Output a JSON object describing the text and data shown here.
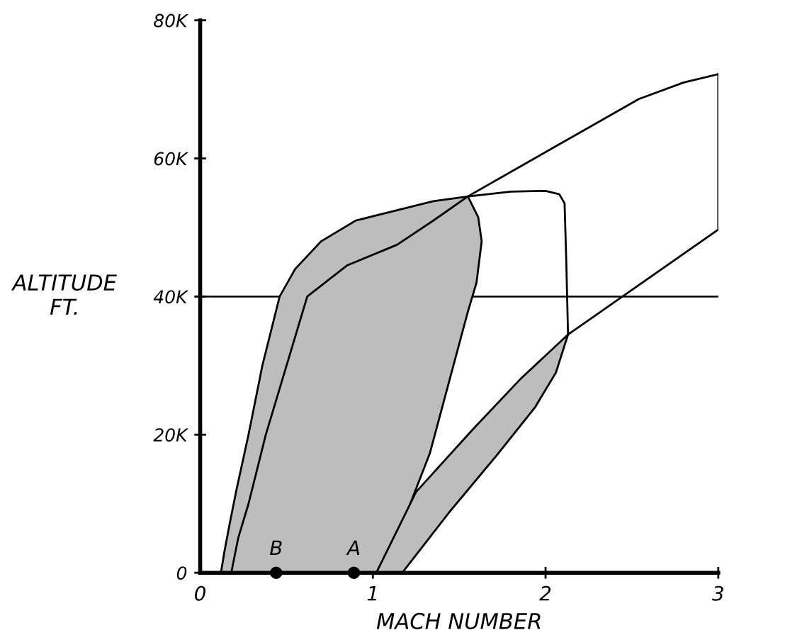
{
  "chart_data": {
    "type": "line",
    "xlabel": "MACH NUMBER",
    "ylabel": "ALTITUDE\nFT.",
    "xlim": [
      0,
      3
    ],
    "xticks": [
      0,
      1,
      2,
      3
    ],
    "ylim": [
      0,
      80000
    ],
    "yticks": [
      {
        "value": 0,
        "label": "0"
      },
      {
        "value": 20000,
        "label": "20K"
      },
      {
        "value": 40000,
        "label": "40K"
      },
      {
        "value": 60000,
        "label": "60K"
      },
      {
        "value": 80000,
        "label": "80K"
      }
    ],
    "grid": false,
    "legend": false,
    "ref_lines": [
      {
        "axis": "y",
        "value": 40000,
        "color": "#000000",
        "line_style": "solid"
      }
    ],
    "series": [
      {
        "type": "area",
        "color": "#bdbdbd",
        "x": [
          0.12,
          0.14,
          0.17,
          0.21,
          0.28,
          0.36,
          0.46,
          0.55,
          0.7,
          0.9,
          1.14,
          1.35,
          1.55,
          1.61,
          1.63,
          1.6,
          1.55,
          1.33,
          1.17,
          1.02
        ],
        "values": [
          0,
          3000,
          7000,
          12000,
          20000,
          30000,
          40000,
          44000,
          48000,
          51000,
          52500,
          53800,
          54500,
          51500,
          48000,
          42000,
          37800,
          17300,
          7000,
          0
        ]
      },
      {
        "type": "area",
        "color": "#bdbdbd",
        "x": [
          1.02,
          1.25,
          1.58,
          1.86,
          2.13,
          2.06,
          1.94,
          1.72,
          1.45,
          1.17
        ],
        "values": [
          0,
          11700,
          20800,
          28200,
          34500,
          29000,
          24000,
          17100,
          9000,
          0
        ]
      },
      {
        "color": "#000000",
        "x": [
          0.18,
          0.22,
          0.28,
          0.38,
          0.5,
          0.62,
          0.85,
          1.14,
          1.35,
          1.55,
          1.9,
          2.21,
          2.54,
          2.8,
          3.0
        ],
        "values": [
          0,
          5000,
          10000,
          20000,
          30000,
          40000,
          44500,
          47500,
          51000,
          54500,
          59500,
          63900,
          68600,
          71000,
          72200
        ]
      },
      {
        "color": "#000000",
        "x": [
          3.0,
          3.0,
          2.13
        ],
        "values": [
          72200,
          49700,
          34500
        ]
      },
      {
        "color": "#000000",
        "x": [
          1.55,
          1.8,
          2.0,
          2.08,
          2.11,
          2.12,
          2.13
        ],
        "values": [
          54500,
          55200,
          55300,
          54800,
          53500,
          45000,
          34500
        ]
      },
      {
        "type": "scatter",
        "color": "#000000",
        "marker": "circle",
        "x": [
          0.44,
          0.89
        ],
        "values": [
          0,
          0
        ]
      }
    ],
    "annotations": [
      {
        "text": "B",
        "x": 0.44,
        "y": 0
      },
      {
        "text": "A",
        "x": 0.89,
        "y": 0
      }
    ]
  }
}
